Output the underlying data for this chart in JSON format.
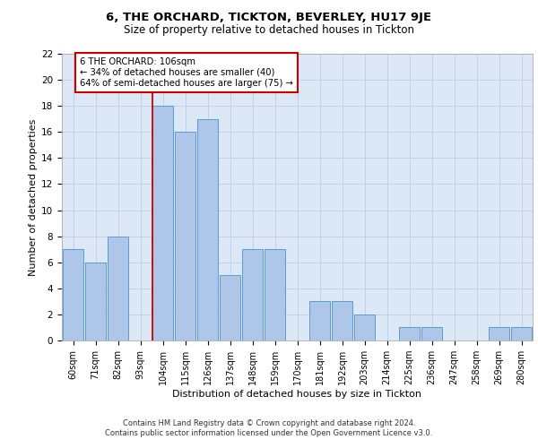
{
  "title1": "6, THE ORCHARD, TICKTON, BEVERLEY, HU17 9JE",
  "title2": "Size of property relative to detached houses in Tickton",
  "xlabel": "Distribution of detached houses by size in Tickton",
  "ylabel": "Number of detached properties",
  "categories": [
    "60sqm",
    "71sqm",
    "82sqm",
    "93sqm",
    "104sqm",
    "115sqm",
    "126sqm",
    "137sqm",
    "148sqm",
    "159sqm",
    "170sqm",
    "181sqm",
    "192sqm",
    "203sqm",
    "214sqm",
    "225sqm",
    "236sqm",
    "247sqm",
    "258sqm",
    "269sqm",
    "280sqm"
  ],
  "values": [
    7,
    6,
    8,
    0,
    18,
    16,
    17,
    5,
    7,
    7,
    0,
    3,
    3,
    2,
    0,
    1,
    1,
    0,
    0,
    1,
    1
  ],
  "bar_color": "#aec6e8",
  "bar_edge_color": "#5b9bd5",
  "grid_color": "#c0d0e8",
  "background_color": "#dce8f5",
  "annotation_box_color": "#cc0000",
  "marker_line_index": 4,
  "annotation_line1": "6 THE ORCHARD: 106sqm",
  "annotation_line2": "← 34% of detached houses are smaller (40)",
  "annotation_line3": "64% of semi-detached houses are larger (75) →",
  "footnote1": "Contains HM Land Registry data © Crown copyright and database right 2024.",
  "footnote2": "Contains public sector information licensed under the Open Government Licence v3.0.",
  "ylim": [
    0,
    22
  ],
  "yticks": [
    0,
    2,
    4,
    6,
    8,
    10,
    12,
    14,
    16,
    18,
    20,
    22
  ]
}
